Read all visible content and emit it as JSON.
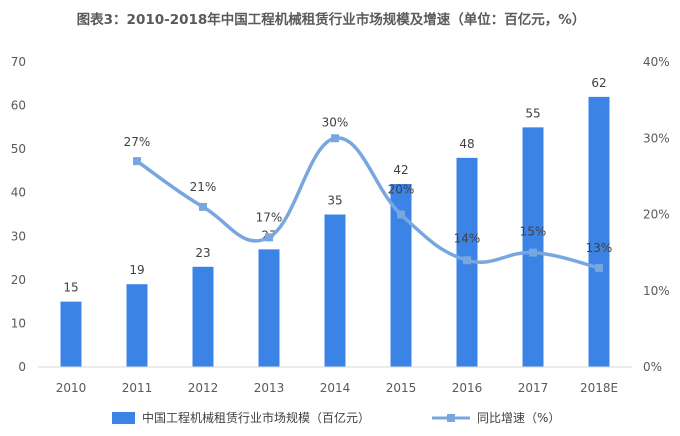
{
  "chart_data": {
    "type": "bar+line",
    "title": "图表3：2010-2018年中国工程机械租赁行业市场规模及增速（单位：百亿元，%）",
    "categories": [
      "2010",
      "2011",
      "2012",
      "2013",
      "2014",
      "2015",
      "2016",
      "2017",
      "2018E"
    ],
    "series": [
      {
        "name": "中国工程机械租赁行业市场规模（百亿元）",
        "type": "bar",
        "axis": "left",
        "values": [
          15,
          19,
          23,
          27,
          35,
          42,
          48,
          55,
          62
        ],
        "labels": [
          "15",
          "19",
          "23",
          "27",
          "35",
          "42",
          "48",
          "55",
          "62"
        ]
      },
      {
        "name": "同比增速（%）",
        "type": "line",
        "axis": "right",
        "values": [
          null,
          27,
          21,
          17,
          30,
          20,
          14,
          15,
          13
        ],
        "labels": [
          "",
          "27%",
          "21%",
          "17%",
          "30%",
          "20%",
          "14%",
          "15%",
          "13%"
        ]
      }
    ],
    "ylim": [
      0,
      70
    ],
    "yticks": [
      "0",
      "10",
      "20",
      "30",
      "40",
      "50",
      "60",
      "70"
    ],
    "y2lim": [
      0,
      40
    ],
    "y2ticks": [
      "0%",
      "10%",
      "20%",
      "30%",
      "40%"
    ],
    "legend_position": "bottom",
    "grid": false,
    "colors": {
      "bar": "#3b83e4",
      "line": "#78a7e0",
      "axis": "#d9d9d9",
      "text": "#595959"
    }
  }
}
